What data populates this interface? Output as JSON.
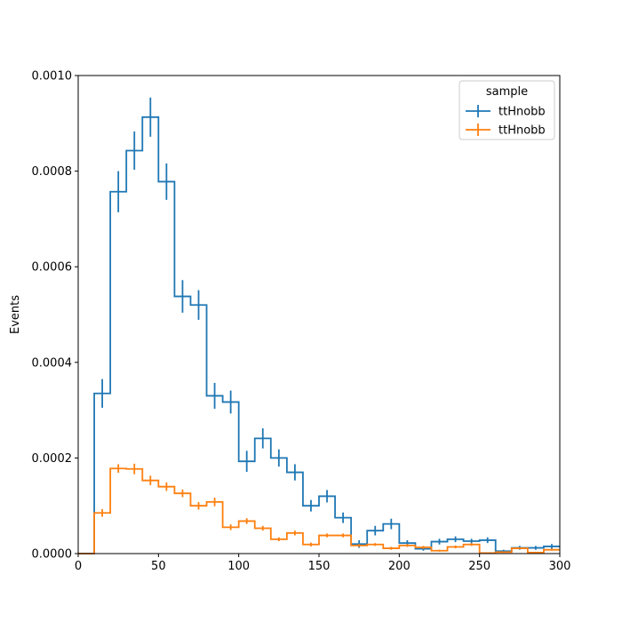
{
  "chart_data": {
    "type": "histogram",
    "title": "",
    "xlabel": "",
    "ylabel": "Events",
    "xlim": [
      0,
      300
    ],
    "ylim": [
      0,
      0.001
    ],
    "xticks": [
      0,
      50,
      100,
      150,
      200,
      250,
      300
    ],
    "yticks": [
      0.0,
      0.0002,
      0.0004,
      0.0006,
      0.0008,
      0.001
    ],
    "ytick_labels": [
      "0.0000",
      "0.0002",
      "0.0004",
      "0.0006",
      "0.0008",
      "0.0010"
    ],
    "grid": false,
    "legend": {
      "title": "sample",
      "placement": "top-right"
    },
    "bin_edges": [
      0,
      10,
      20,
      30,
      40,
      50,
      60,
      70,
      80,
      90,
      100,
      110,
      120,
      130,
      140,
      150,
      160,
      170,
      180,
      190,
      200,
      210,
      220,
      230,
      240,
      250,
      260,
      270,
      280,
      290,
      300
    ],
    "series": [
      {
        "name": "ttHnobb",
        "color": "#1f77b4",
        "values": [
          0,
          0.000335,
          0.000757,
          0.000843,
          0.000913,
          0.000778,
          0.000538,
          0.00052,
          0.00033,
          0.000317,
          0.000193,
          0.000241,
          0.0002,
          0.00017,
          0.0001,
          0.00012,
          7.5e-05,
          2e-05,
          4.8e-05,
          6.2e-05,
          2.2e-05,
          1e-05,
          2.5e-05,
          3e-05,
          2.6e-05,
          2.8e-05,
          5e-06,
          1.2e-05,
          1.2e-05,
          1.5e-05
        ],
        "errors": [
          0,
          3e-05,
          4.3e-05,
          4e-05,
          4.1e-05,
          3.8e-05,
          3.4e-05,
          3.1e-05,
          2.7e-05,
          2.4e-05,
          2.2e-05,
          2.1e-05,
          1.8e-05,
          1.7e-05,
          1.2e-05,
          1.3e-05,
          1.1e-05,
          8e-06,
          1e-05,
          1.1e-05,
          6e-06,
          4e-06,
          6e-06,
          6e-06,
          5e-06,
          6e-06,
          3e-06,
          4e-06,
          4e-06,
          5e-06
        ]
      },
      {
        "name": "ttHnobb",
        "color": "#ff7f0e",
        "values": [
          0,
          8.5e-05,
          0.000178,
          0.000177,
          0.000153,
          0.00014,
          0.000126,
          0.0001,
          0.000108,
          5.5e-05,
          6.8e-05,
          5.3e-05,
          3e-05,
          4.3e-05,
          1.9e-05,
          3.8e-05,
          3.8e-05,
          1.7e-05,
          1.9e-05,
          1.1e-05,
          1.7e-05,
          1.3e-05,
          6e-06,
          1.4e-05,
          1.9e-05,
          1e-06,
          3e-06,
          1.1e-05,
          2e-06,
          8e-06
        ],
        "errors": [
          0,
          8e-06,
          9e-06,
          1.1e-05,
          1e-05,
          9e-06,
          8e-06,
          8e-06,
          9e-06,
          6e-06,
          6e-06,
          5e-06,
          4e-06,
          5e-06,
          4e-06,
          4e-06,
          4e-06,
          3e-06,
          3e-06,
          3e-06,
          3e-06,
          3e-06,
          2e-06,
          3e-06,
          3e-06,
          1e-06,
          1e-06,
          2e-06,
          1e-06,
          2e-06
        ]
      }
    ]
  }
}
